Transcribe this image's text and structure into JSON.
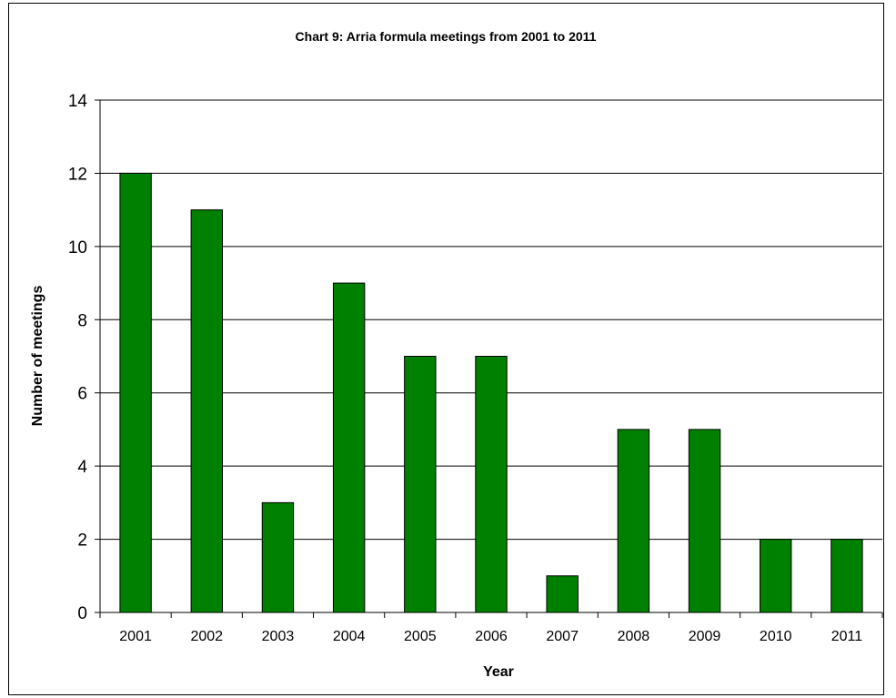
{
  "chart_data": {
    "type": "bar",
    "title": "Chart 9: Arria formula meetings from 2001 to 2011",
    "xlabel": "Year",
    "ylabel": "Number of meetings",
    "categories": [
      "2001",
      "2002",
      "2003",
      "2004",
      "2005",
      "2006",
      "2007",
      "2008",
      "2009",
      "2010",
      "2011"
    ],
    "values": [
      12,
      11,
      3,
      9,
      7,
      7,
      1,
      5,
      5,
      2,
      2
    ],
    "ylim": [
      0,
      14
    ],
    "yticks": [
      "0",
      "2",
      "4",
      "6",
      "8",
      "10",
      "12",
      "14"
    ],
    "grid": true,
    "legend": "none",
    "bar_color": "#008000"
  }
}
